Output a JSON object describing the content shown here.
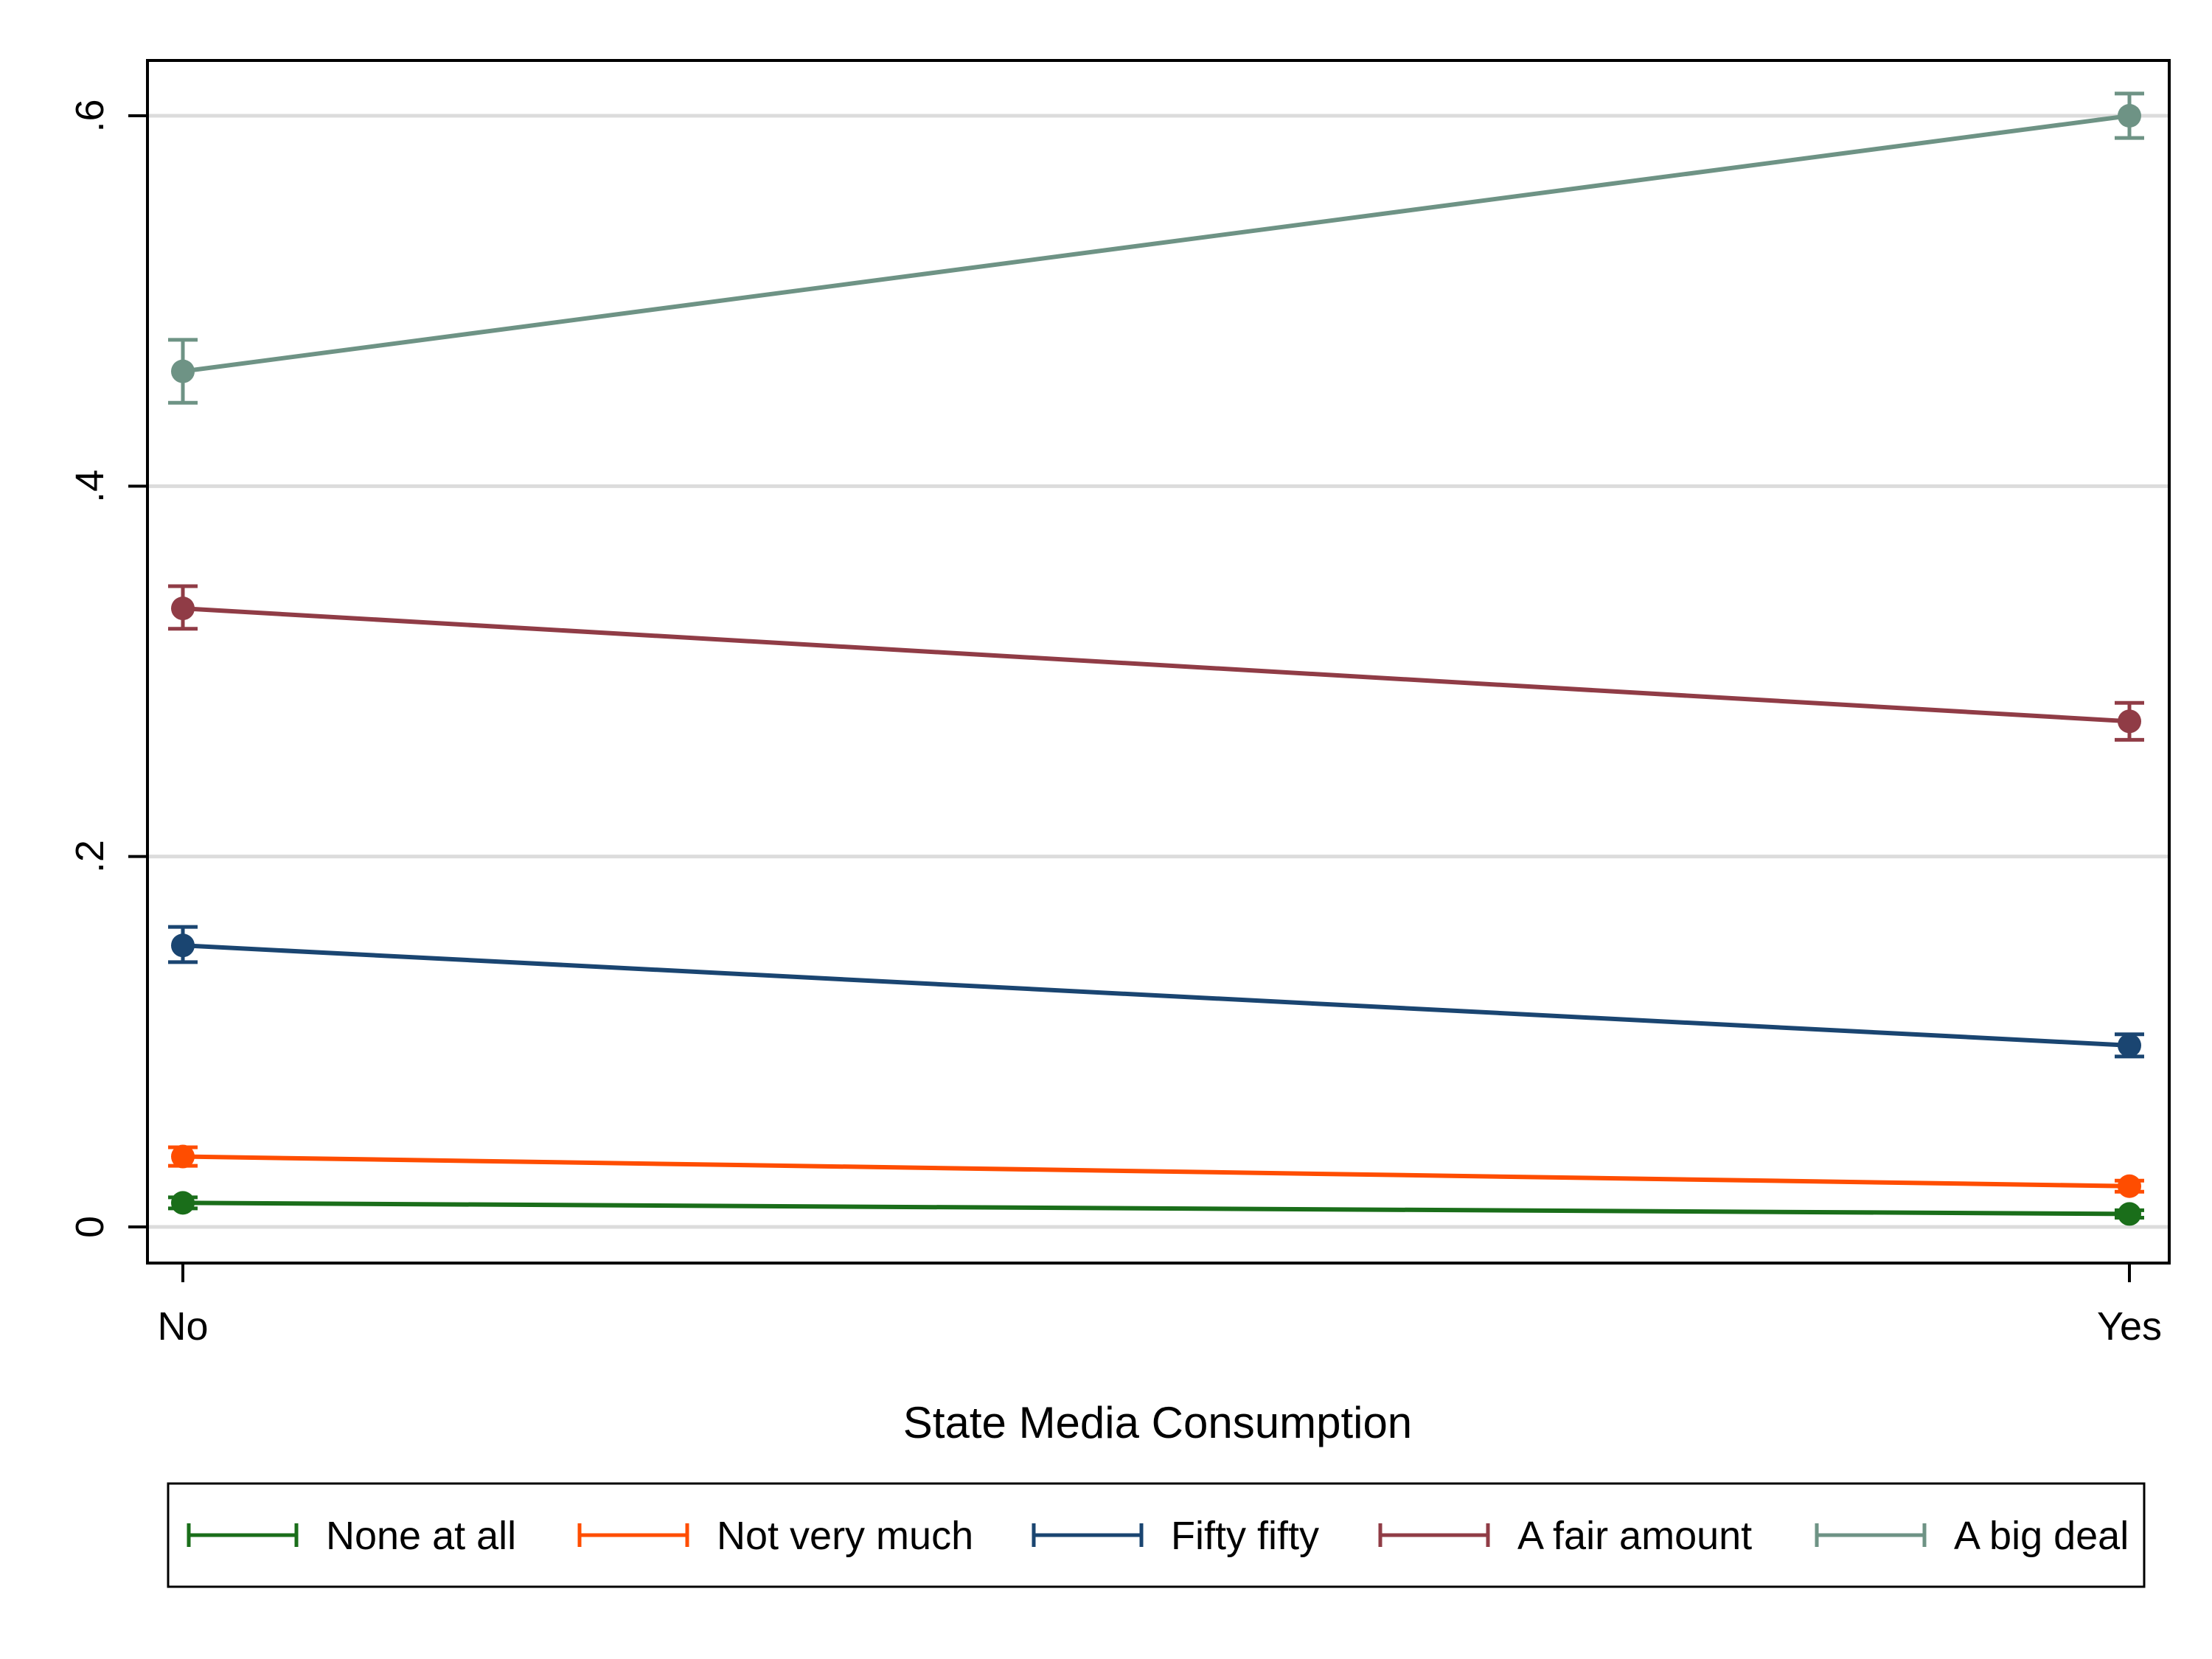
{
  "chart_data": {
    "type": "line",
    "title": "",
    "xlabel": "State Media Consumption",
    "ylabel": "",
    "categories": [
      "No",
      "Yes"
    ],
    "ylim": [
      -0.04,
      0.63
    ],
    "yticks": [
      0,
      0.2,
      0.4,
      0.6
    ],
    "ytick_labels": [
      "0",
      ".2",
      ".4",
      ".6"
    ],
    "grid": true,
    "error_bars": true,
    "legend_position": "bottom",
    "series": [
      {
        "name": "None at all",
        "color": "#1a6e1a",
        "values": [
          0.013,
          0.007
        ],
        "ci_low": [
          0.01,
          0.005
        ],
        "ci_high": [
          0.016,
          0.009
        ]
      },
      {
        "name": "Not very much",
        "color": "#ff4d00",
        "values": [
          0.038,
          0.022
        ],
        "ci_low": [
          0.033,
          0.019
        ],
        "ci_high": [
          0.043,
          0.025
        ]
      },
      {
        "name": "Fifty fifty",
        "color": "#1a4571",
        "values": [
          0.152,
          0.098
        ],
        "ci_low": [
          0.143,
          0.092
        ],
        "ci_high": [
          0.162,
          0.104
        ]
      },
      {
        "name": "A fair amount",
        "color": "#903c46",
        "values": [
          0.334,
          0.273
        ],
        "ci_low": [
          0.323,
          0.263
        ],
        "ci_high": [
          0.346,
          0.283
        ]
      },
      {
        "name": "A big deal",
        "color": "#6e9385",
        "values": [
          0.462,
          0.6
        ],
        "ci_low": [
          0.445,
          0.588
        ],
        "ci_high": [
          0.479,
          0.612
        ]
      }
    ]
  }
}
